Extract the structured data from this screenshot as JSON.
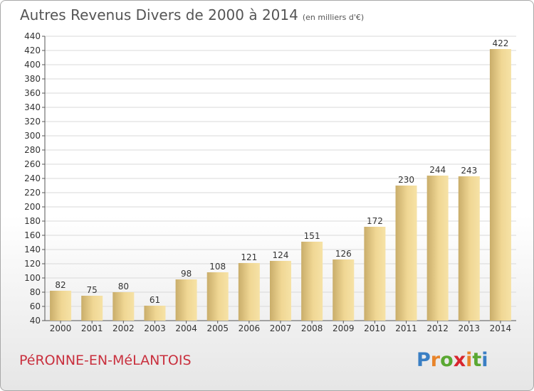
{
  "header": {
    "title": "Autres Revenus Divers de 2000 à 2014",
    "unit": "(en milliers d'€)"
  },
  "footer": {
    "town": "PéRONNE-EN-MéLANTOIS",
    "logo": {
      "letters": [
        "P",
        "r",
        "o",
        "x",
        "i",
        "t",
        "i"
      ],
      "colors": [
        "#3a7fc4",
        "#e8842a",
        "#5aa832",
        "#d8262e",
        "#e8842a",
        "#5aa832",
        "#3a7fc4"
      ]
    }
  },
  "colors": {
    "bar_light": "#f3dc9a",
    "bar_dark": "#c9ad6a",
    "grid": "#d8d8d8",
    "title": "#555555",
    "town": "#c9303e"
  },
  "chart_data": {
    "type": "bar",
    "title": "Autres Revenus Divers de 2000 à 2014",
    "subtitle": "(en milliers d'€)",
    "xlabel": "",
    "ylabel": "",
    "categories": [
      "2000",
      "2001",
      "2002",
      "2003",
      "2004",
      "2005",
      "2006",
      "2007",
      "2008",
      "2009",
      "2010",
      "2011",
      "2012",
      "2013",
      "2014"
    ],
    "values": [
      82,
      75,
      80,
      61,
      98,
      108,
      121,
      124,
      151,
      126,
      172,
      230,
      244,
      243,
      422
    ],
    "ylim": [
      40,
      440
    ],
    "yticks": [
      40,
      60,
      80,
      100,
      120,
      140,
      160,
      180,
      200,
      220,
      240,
      260,
      280,
      300,
      320,
      340,
      360,
      380,
      400,
      420,
      440
    ],
    "grid": true,
    "data_labels": true,
    "legend": "none"
  }
}
